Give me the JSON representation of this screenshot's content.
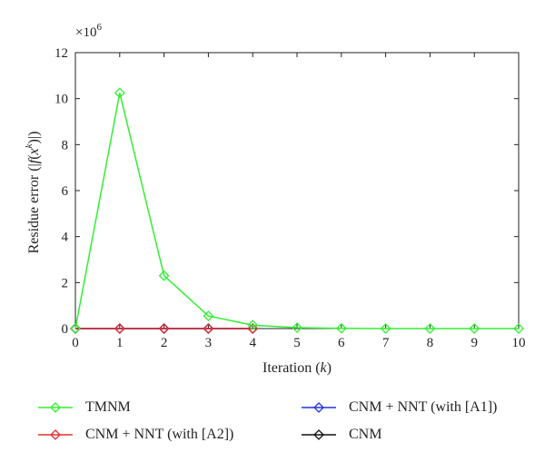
{
  "chart_data": {
    "type": "line",
    "xlabel": "Iteration (k)",
    "ylabel": "Residue error (|f(x^k)|)",
    "multiplier": "×10^6",
    "x": [
      0,
      1,
      2,
      3,
      4,
      5,
      6,
      7,
      8,
      9,
      10
    ],
    "xlim": [
      0,
      10
    ],
    "ylim": [
      0,
      12
    ],
    "xticks": [
      "0",
      "1",
      "2",
      "3",
      "4",
      "5",
      "6",
      "7",
      "8",
      "9",
      "10"
    ],
    "yticks": [
      "0",
      "2",
      "4",
      "6",
      "8",
      "10",
      "12"
    ],
    "grid": false,
    "legend_position": "below",
    "series": [
      {
        "name": "TMNM",
        "color": "#33ee33",
        "marker": "diamond",
        "x": [
          0,
          1,
          2,
          3,
          4,
          5,
          6,
          7,
          8,
          9,
          10
        ],
        "values": [
          0,
          10.25,
          2.3,
          0.55,
          0.15,
          0.04,
          0.01,
          0,
          0,
          0,
          0
        ]
      },
      {
        "name": "CNM + NNT (with [A2])",
        "color": "#e03030",
        "marker": "diamond",
        "x": [
          0,
          1,
          2,
          3,
          4
        ],
        "values": [
          0,
          0,
          0,
          0,
          0
        ]
      },
      {
        "name": "CNM + NNT (with [A1])",
        "color": "#2233dd",
        "marker": "diamond",
        "x": [
          0,
          1,
          2,
          3,
          4
        ],
        "values": [
          0,
          0,
          0,
          0,
          0
        ]
      },
      {
        "name": "CNM",
        "color": "#111111",
        "marker": "diamond",
        "x": [
          0,
          1,
          2,
          3,
          4
        ],
        "values": [
          0,
          0,
          0,
          0,
          0
        ]
      }
    ]
  }
}
